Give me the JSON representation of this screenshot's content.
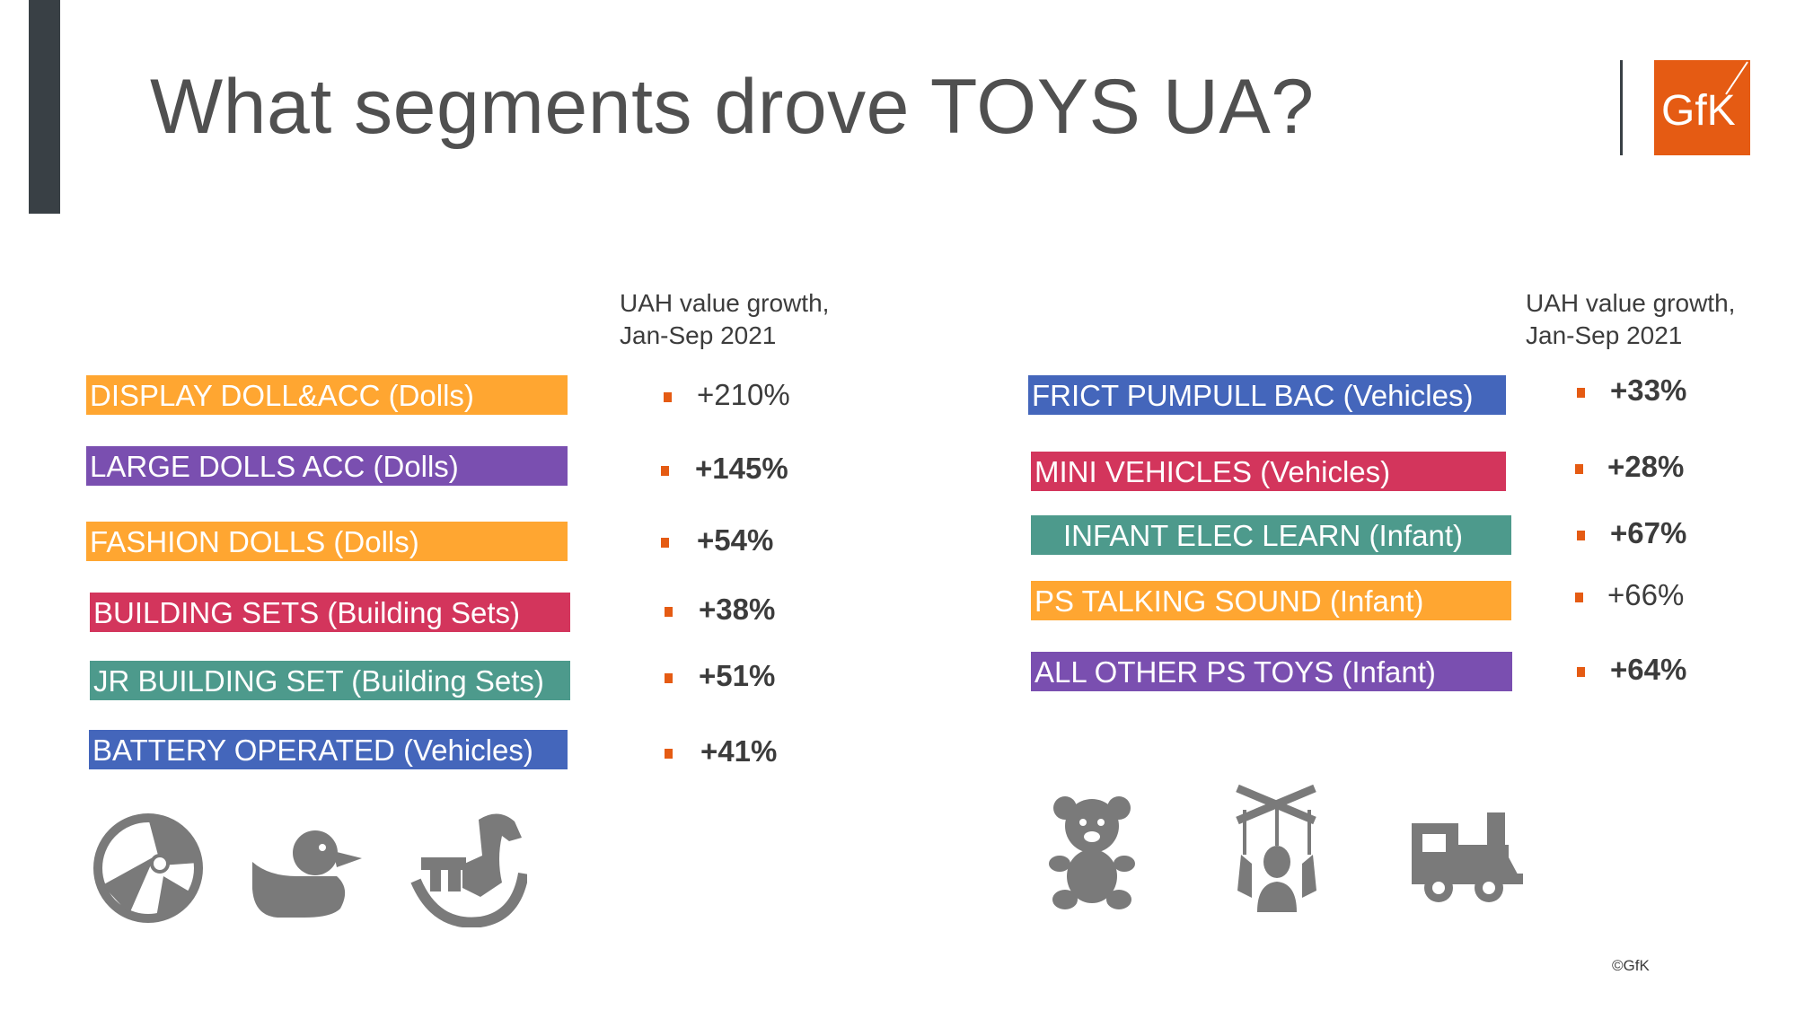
{
  "title": "What segments drove TOYS UA?",
  "logo_text": "GfK",
  "copyright": "©GfK",
  "colors": {
    "orange": "#FFA631",
    "purple": "#7A4FB0",
    "crimson": "#D3355C",
    "teal": "#4D9A8C",
    "blue": "#4466BB",
    "bullet": "#E55B13",
    "icon": "#7A7A7A"
  },
  "left": {
    "header": [
      "UAH value growth,",
      "Jan-Sep 2021"
    ],
    "segments": [
      {
        "label": "DISPLAY DOLL&ACC (Dolls)",
        "growth": "+210%"
      },
      {
        "label": "LARGE DOLLS ACC (Dolls)",
        "growth": "+145%"
      },
      {
        "label": "FASHION DOLLS (Dolls)",
        "growth": "+54%"
      },
      {
        "label": "BUILDING SETS (Building Sets)",
        "growth": "+38%"
      },
      {
        "label": "JR BUILDING SET (Building Sets)",
        "growth": "+51%"
      },
      {
        "label": "BATTERY OPERATED (Vehicles)",
        "growth": "+41%"
      }
    ],
    "icons": [
      "beach-ball-icon",
      "rubber-duck-icon",
      "rocking-horse-icon"
    ]
  },
  "right": {
    "header": [
      "UAH value growth,",
      "Jan-Sep 2021"
    ],
    "segments": [
      {
        "label": "FRICT PUMPULL BAC (Vehicles)",
        "growth": "+33%"
      },
      {
        "label": "MINI VEHICLES (Vehicles)",
        "growth": "+28%"
      },
      {
        "label": " INFANT ELEC LEARN (Infant)",
        "growth": "+67%"
      },
      {
        "label": "PS TALKING SOUND (Infant)",
        "growth": "+66%"
      },
      {
        "label": "ALL OTHER PS TOYS (Infant)",
        "growth": "+64%"
      }
    ],
    "icons": [
      "teddy-bear-icon",
      "marionette-icon",
      "toy-train-icon"
    ]
  }
}
